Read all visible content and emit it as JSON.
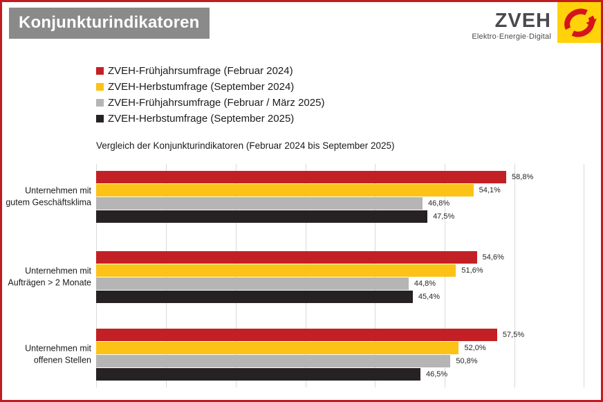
{
  "header": {
    "title": "Konjunkturindikatoren",
    "logo": {
      "name": "ZVEH",
      "tagline": "Elektro·Energie·Digital",
      "mark_bg": "#FFD20A",
      "mark_swoosh": "#D6131C"
    }
  },
  "colors": {
    "frame_border": "#C11B22",
    "title_bg": "#8A8A8A",
    "gridline": "#D9D9D9",
    "text": "#1A1A1A"
  },
  "chart_data": {
    "type": "bar",
    "orientation": "horizontal",
    "title": "Vergleich der Konjunkturindikatoren (Februar 2024 bis September 2025)",
    "categories": [
      "Unternehmen mit gutem Geschäftsklima",
      "Unternehmen mit Aufträgen > 2 Monate",
      "Unternehmen mit offenen Stellen"
    ],
    "category_label_lines": [
      [
        "Unternehmen mit",
        "gutem Geschäftsklima"
      ],
      [
        "Unternehmen mit",
        "Aufträgen > 2 Monate"
      ],
      [
        "Unternehmen mit",
        "offenen Stellen"
      ]
    ],
    "series": [
      {
        "name": "ZVEH-Frühjahrsumfrage (Februar 2024)",
        "color": "#C32026",
        "values": [
          58.8,
          54.6,
          57.5
        ],
        "labels": [
          "58,8%",
          "54,6%",
          "57,5%"
        ]
      },
      {
        "name": "ZVEH-Herbstumfrage (September 2024)",
        "color": "#FCC216",
        "values": [
          54.1,
          51.6,
          52.0
        ],
        "labels": [
          "54,1%",
          "51,6%",
          "52,0%"
        ]
      },
      {
        "name": "ZVEH-Frühjahrsumfrage (Februar / März 2025)",
        "color": "#B5B5B5",
        "values": [
          46.8,
          44.8,
          50.8
        ],
        "labels": [
          "46,8%",
          "44,8%",
          "50,8%"
        ]
      },
      {
        "name": "ZVEH-Herbstumfrage (September 2025)",
        "color": "#262122",
        "values": [
          47.5,
          45.4,
          46.5
        ],
        "labels": [
          "47,5%",
          "45,4%",
          "46,5%"
        ]
      }
    ],
    "xlim": [
      0,
      70
    ],
    "grid_step": 10,
    "grid": true,
    "xlabel": "",
    "ylabel": "",
    "axis_tick_labels_visible": false,
    "legend_position": "top-left"
  }
}
